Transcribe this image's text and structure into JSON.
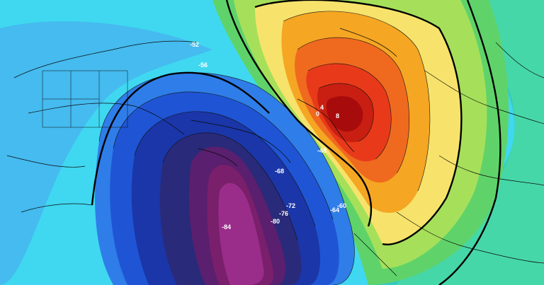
{
  "map": {
    "colors": {
      "background": "#3fd8f0",
      "cold_core": "#7a1f6b",
      "cold_inner": "#9b2d8a",
      "warm_core": "#a80b0b",
      "warm_mid": "#e83a1a",
      "warm_outer": "#f5a623",
      "yellow": "#f7e36b",
      "green": "#5fd36a"
    },
    "contour_labels": [
      {
        "id": "label-m52",
        "text": "-52"
      },
      {
        "id": "label-m56",
        "text": "-56"
      },
      {
        "id": "label-m68",
        "text": "-68"
      },
      {
        "id": "label-m72",
        "text": "-72"
      },
      {
        "id": "label-m76",
        "text": "-76"
      },
      {
        "id": "label-m80",
        "text": "-80"
      },
      {
        "id": "label-m84",
        "text": "-84"
      },
      {
        "id": "label-m64",
        "text": "-64"
      },
      {
        "id": "label-m60",
        "text": "-60"
      },
      {
        "id": "label-m48",
        "text": "-48"
      },
      {
        "id": "label-4",
        "text": "4"
      },
      {
        "id": "label-0",
        "text": "0"
      },
      {
        "id": "label-8",
        "text": "8"
      }
    ]
  }
}
